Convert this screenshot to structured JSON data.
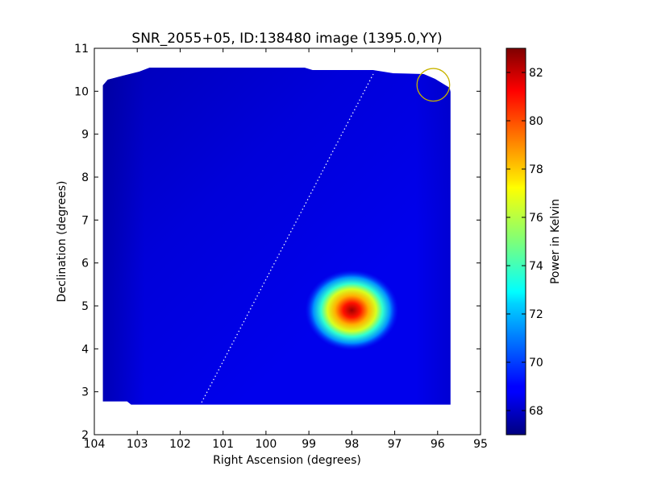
{
  "chart_data": {
    "type": "heatmap",
    "title": "SNR_2055+05, ID:138480 image (1395.0,YY)",
    "xlabel": "Right Ascension (degrees)",
    "ylabel": "Declination (degrees)",
    "xlim": [
      104,
      95
    ],
    "ylim": [
      2,
      11
    ],
    "x_ticks": [
      104,
      103,
      102,
      101,
      100,
      99,
      98,
      97,
      96,
      95
    ],
    "y_ticks": [
      2,
      3,
      4,
      5,
      6,
      7,
      8,
      9,
      10,
      11
    ],
    "grid": false,
    "colormap": "jet",
    "colorbar": {
      "label": "Power in Kelvin",
      "range": [
        67,
        83
      ],
      "ticks": [
        68,
        70,
        72,
        74,
        76,
        78,
        80,
        82
      ]
    },
    "background_level": 68.7,
    "map_extent": {
      "ra": [
        103.8,
        95.7
      ],
      "dec": [
        2.7,
        10.55
      ]
    },
    "source": {
      "ra": 98.0,
      "dec": 4.9,
      "peak": 82.5
    },
    "circle_marker": {
      "ra": 96.1,
      "dec": 10.15,
      "radius_deg": 0.38,
      "color": "#c8b400"
    },
    "dotted_line": {
      "start": {
        "ra": 101.5,
        "dec": 2.75
      },
      "end": {
        "ra": 97.5,
        "dec": 10.4
      }
    }
  }
}
